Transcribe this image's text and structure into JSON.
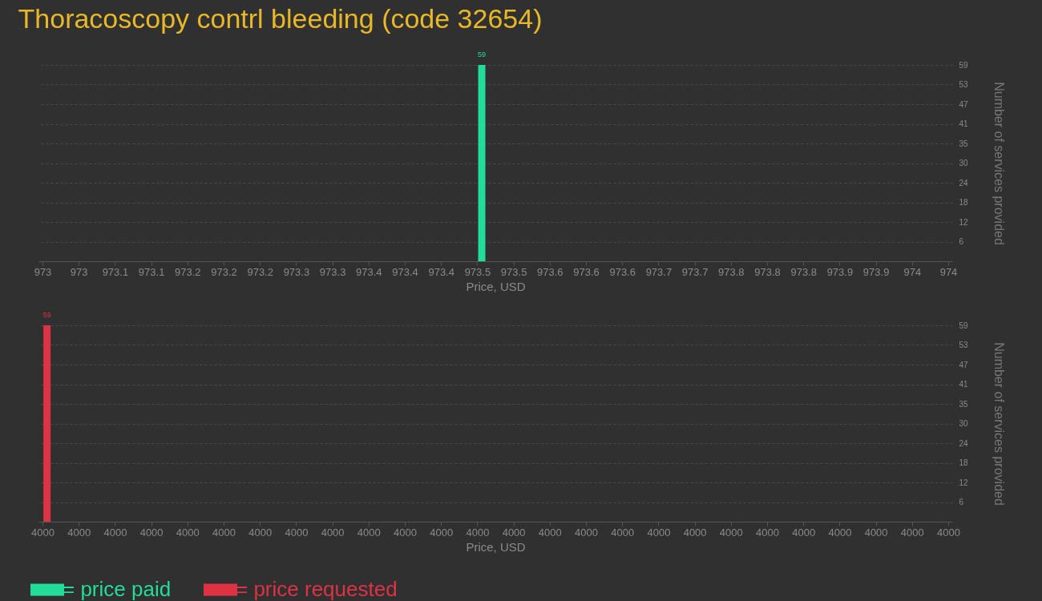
{
  "chart_data": [
    {
      "type": "bar",
      "title": "Thoracoscopy contrl bleeding (code 32654)",
      "xlabel": "Price, USD",
      "ylabel": "Number of services provided",
      "x": [
        973.485
      ],
      "series": [
        {
          "name": "= price paid",
          "color": "#22dd99",
          "values": [
            59
          ]
        }
      ],
      "xlim": [
        973,
        974
      ],
      "xticks": [
        {
          "value": 973,
          "label": "973"
        },
        {
          "value": 973.04,
          "label": "973"
        },
        {
          "value": 973.08,
          "label": "973.1"
        },
        {
          "value": 973.12,
          "label": "973.1"
        },
        {
          "value": 973.16,
          "label": "973.2"
        },
        {
          "value": 973.2,
          "label": "973.2"
        },
        {
          "value": 973.24,
          "label": "973.2"
        },
        {
          "value": 973.28,
          "label": "973.3"
        },
        {
          "value": 973.32,
          "label": "973.3"
        },
        {
          "value": 973.36,
          "label": "973.4"
        },
        {
          "value": 973.4,
          "label": "973.4"
        },
        {
          "value": 973.44,
          "label": "973.4"
        },
        {
          "value": 973.48,
          "label": "973.5"
        },
        {
          "value": 973.52,
          "label": "973.5"
        },
        {
          "value": 973.56,
          "label": "973.6"
        },
        {
          "value": 973.6,
          "label": "973.6"
        },
        {
          "value": 973.64,
          "label": "973.6"
        },
        {
          "value": 973.68,
          "label": "973.7"
        },
        {
          "value": 973.72,
          "label": "973.7"
        },
        {
          "value": 973.76,
          "label": "973.8"
        },
        {
          "value": 973.8,
          "label": "973.8"
        },
        {
          "value": 973.84,
          "label": "973.8"
        },
        {
          "value": 973.88,
          "label": "973.9"
        },
        {
          "value": 973.92,
          "label": "973.9"
        },
        {
          "value": 973.96,
          "label": "974"
        },
        {
          "value": 974,
          "label": "974"
        }
      ],
      "ylim": [
        0,
        59
      ],
      "yticks": [
        {
          "value": 5.9,
          "label": "6"
        },
        {
          "value": 11.8,
          "label": "12"
        },
        {
          "value": 17.7,
          "label": "18"
        },
        {
          "value": 23.6,
          "label": "24"
        },
        {
          "value": 29.5,
          "label": "30"
        },
        {
          "value": 35.4,
          "label": "35"
        },
        {
          "value": 41.3,
          "label": "41"
        },
        {
          "value": 47.2,
          "label": "47"
        },
        {
          "value": 53.1,
          "label": "53"
        },
        59
      ],
      "grid": "y",
      "data_labels": true
    },
    {
      "type": "bar",
      "xlabel": "Price, USD",
      "ylabel": "Number of services provided",
      "x": [
        4000.002
      ],
      "series": [
        {
          "name": "= price requested",
          "color": "#dd3344",
          "values": [
            59
          ]
        }
      ],
      "xlim": [
        4000,
        4000.4
      ],
      "xticks": [
        {
          "value": 4000,
          "label": "4000"
        },
        {
          "value": 4000.016,
          "label": "4000"
        },
        {
          "value": 4000.032,
          "label": "4000"
        },
        {
          "value": 4000.048,
          "label": "4000"
        },
        {
          "value": 4000.064,
          "label": "4000"
        },
        {
          "value": 4000.08,
          "label": "4000"
        },
        {
          "value": 4000.096,
          "label": "4000"
        },
        {
          "value": 4000.112,
          "label": "4000"
        },
        {
          "value": 4000.128,
          "label": "4000"
        },
        {
          "value": 4000.144,
          "label": "4000"
        },
        {
          "value": 4000.16,
          "label": "4000"
        },
        {
          "value": 4000.176,
          "label": "4000"
        },
        {
          "value": 4000.192,
          "label": "4000"
        },
        {
          "value": 4000.208,
          "label": "4000"
        },
        {
          "value": 4000.224,
          "label": "4000"
        },
        {
          "value": 4000.24,
          "label": "4000"
        },
        {
          "value": 4000.256,
          "label": "4000"
        },
        {
          "value": 4000.272,
          "label": "4000"
        },
        {
          "value": 4000.288,
          "label": "4000"
        },
        {
          "value": 4000.304,
          "label": "4000"
        },
        {
          "value": 4000.32,
          "label": "4000"
        },
        {
          "value": 4000.336,
          "label": "4000"
        },
        {
          "value": 4000.352,
          "label": "4000"
        },
        {
          "value": 4000.368,
          "label": "4000"
        },
        {
          "value": 4000.384,
          "label": "4000"
        },
        {
          "value": 4000.4,
          "label": "4000"
        }
      ],
      "ylim": [
        0,
        59
      ],
      "yticks": [
        {
          "value": 5.9,
          "label": "6"
        },
        {
          "value": 11.8,
          "label": "12"
        },
        {
          "value": 17.7,
          "label": "18"
        },
        {
          "value": 23.6,
          "label": "24"
        },
        {
          "value": 29.5,
          "label": "30"
        },
        {
          "value": 35.4,
          "label": "35"
        },
        {
          "value": 41.3,
          "label": "41"
        },
        {
          "value": 47.2,
          "label": "47"
        },
        {
          "value": 53.1,
          "label": "53"
        },
        59
      ],
      "grid": "y",
      "data_labels": true,
      "legend": "bottom left"
    }
  ]
}
